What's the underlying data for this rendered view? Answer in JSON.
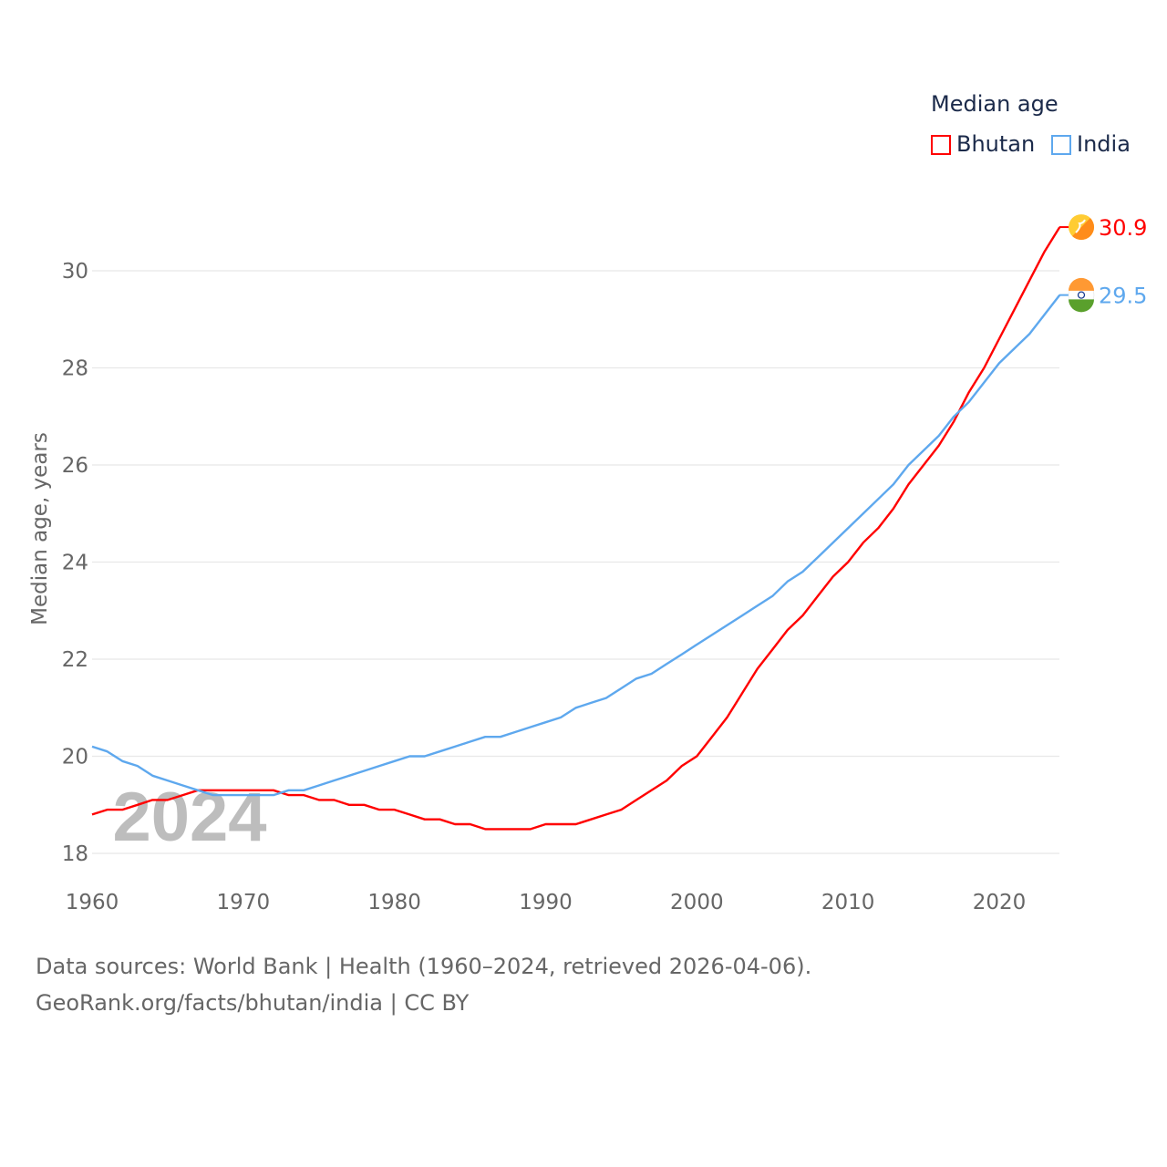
{
  "chart_data": {
    "type": "line",
    "title": "Median age",
    "ylabel": "Median age, years",
    "xlabel": "",
    "xlim": [
      1960,
      2024
    ],
    "ylim": [
      18,
      31
    ],
    "yticks": [
      18,
      20,
      22,
      24,
      26,
      28,
      30
    ],
    "xticks": [
      1960,
      1970,
      1980,
      1990,
      2000,
      2010,
      2020
    ],
    "grid": true,
    "legend_placement": "top-right",
    "year_watermark": "2024",
    "x": [
      1960,
      1961,
      1962,
      1963,
      1964,
      1965,
      1966,
      1967,
      1968,
      1969,
      1970,
      1971,
      1972,
      1973,
      1974,
      1975,
      1976,
      1977,
      1978,
      1979,
      1980,
      1981,
      1982,
      1983,
      1984,
      1985,
      1986,
      1987,
      1988,
      1989,
      1990,
      1991,
      1992,
      1993,
      1994,
      1995,
      1996,
      1997,
      1998,
      1999,
      2000,
      2001,
      2002,
      2003,
      2004,
      2005,
      2006,
      2007,
      2008,
      2009,
      2010,
      2011,
      2012,
      2013,
      2014,
      2015,
      2016,
      2017,
      2018,
      2019,
      2020,
      2021,
      2022,
      2023,
      2024
    ],
    "series": [
      {
        "name": "Bhutan",
        "color": "#ff0000",
        "end_label": "30.9",
        "values": [
          18.8,
          18.9,
          18.9,
          19.0,
          19.1,
          19.1,
          19.2,
          19.3,
          19.3,
          19.3,
          19.3,
          19.3,
          19.3,
          19.2,
          19.2,
          19.1,
          19.1,
          19.0,
          19.0,
          18.9,
          18.9,
          18.8,
          18.7,
          18.7,
          18.6,
          18.6,
          18.5,
          18.5,
          18.5,
          18.5,
          18.6,
          18.6,
          18.6,
          18.7,
          18.8,
          18.9,
          19.1,
          19.3,
          19.5,
          19.8,
          20.0,
          20.4,
          20.8,
          21.3,
          21.8,
          22.2,
          22.6,
          22.9,
          23.3,
          23.7,
          24.0,
          24.4,
          24.7,
          25.1,
          25.6,
          26.0,
          26.4,
          26.9,
          27.5,
          28.0,
          28.6,
          29.2,
          29.8,
          30.4,
          30.9
        ]
      },
      {
        "name": "India",
        "color": "#5ea8ee",
        "end_label": "29.5",
        "values": [
          20.2,
          20.1,
          19.9,
          19.8,
          19.6,
          19.5,
          19.4,
          19.3,
          19.2,
          19.2,
          19.2,
          19.2,
          19.2,
          19.3,
          19.3,
          19.4,
          19.5,
          19.6,
          19.7,
          19.8,
          19.9,
          20.0,
          20.0,
          20.1,
          20.2,
          20.3,
          20.4,
          20.4,
          20.5,
          20.6,
          20.7,
          20.8,
          21.0,
          21.1,
          21.2,
          21.4,
          21.6,
          21.7,
          21.9,
          22.1,
          22.3,
          22.5,
          22.7,
          22.9,
          23.1,
          23.3,
          23.6,
          23.8,
          24.1,
          24.4,
          24.7,
          25.0,
          25.3,
          25.6,
          26.0,
          26.3,
          26.6,
          27.0,
          27.3,
          27.7,
          28.1,
          28.4,
          28.7,
          29.1,
          29.5
        ]
      }
    ]
  },
  "sources": {
    "line1": "Data sources: World Bank | Health (1960–2024, retrieved 2026-04-06).",
    "line2": "GeoRank.org/facts/bhutan/india | CC BY"
  }
}
